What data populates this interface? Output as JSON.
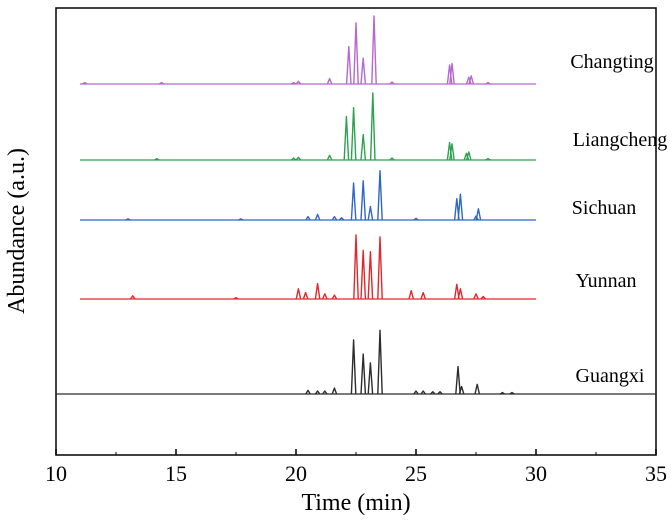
{
  "chart_data": {
    "type": "line",
    "title": "",
    "xlabel": "Time (min)",
    "ylabel": "Abundance (a.u.)",
    "xlim": [
      10,
      35
    ],
    "xticks": [
      10,
      15,
      20,
      25,
      30,
      35
    ],
    "y_ticks_shown": false,
    "legend": "labels placed inline to the right of each stacked trace",
    "series": [
      {
        "name": "Changting",
        "color": "#b468d1",
        "peaks": [
          [
            11.2,
            0.02
          ],
          [
            14.4,
            0.02
          ],
          [
            19.9,
            0.02
          ],
          [
            20.1,
            0.04
          ],
          [
            21.4,
            0.08
          ],
          [
            22.2,
            0.55
          ],
          [
            22.5,
            0.9
          ],
          [
            22.8,
            0.38
          ],
          [
            23.25,
            1.0
          ],
          [
            24.0,
            0.03
          ],
          [
            26.4,
            0.28
          ],
          [
            26.5,
            0.3
          ],
          [
            27.2,
            0.1
          ],
          [
            27.3,
            0.12
          ],
          [
            28.0,
            0.02
          ]
        ]
      },
      {
        "name": "Liangcheng",
        "color": "#2ca24f",
        "peaks": [
          [
            14.2,
            0.02
          ],
          [
            19.9,
            0.03
          ],
          [
            20.1,
            0.04
          ],
          [
            21.4,
            0.07
          ],
          [
            22.1,
            0.65
          ],
          [
            22.4,
            0.78
          ],
          [
            22.8,
            0.38
          ],
          [
            23.2,
            1.0
          ],
          [
            24.0,
            0.03
          ],
          [
            26.4,
            0.26
          ],
          [
            26.5,
            0.24
          ],
          [
            27.1,
            0.1
          ],
          [
            27.2,
            0.12
          ],
          [
            28.0,
            0.02
          ]
        ]
      },
      {
        "name": "Sichuan",
        "color": "#2e66cc",
        "peaks": [
          [
            13.0,
            0.02
          ],
          [
            17.7,
            0.02
          ],
          [
            20.5,
            0.06
          ],
          [
            20.9,
            0.1
          ],
          [
            21.6,
            0.06
          ],
          [
            21.9,
            0.04
          ],
          [
            22.4,
            0.66
          ],
          [
            22.8,
            0.7
          ],
          [
            23.1,
            0.24
          ],
          [
            23.5,
            0.88
          ],
          [
            25.0,
            0.03
          ],
          [
            26.7,
            0.38
          ],
          [
            26.85,
            0.46
          ],
          [
            27.5,
            0.07
          ],
          [
            27.6,
            0.2
          ]
        ]
      },
      {
        "name": "Yunnan",
        "color": "#e0282c",
        "peaks": [
          [
            13.2,
            0.05
          ],
          [
            17.5,
            0.02
          ],
          [
            20.1,
            0.16
          ],
          [
            20.4,
            0.1
          ],
          [
            20.9,
            0.24
          ],
          [
            21.2,
            0.08
          ],
          [
            21.6,
            0.06
          ],
          [
            22.5,
            1.0
          ],
          [
            22.8,
            0.76
          ],
          [
            23.1,
            0.74
          ],
          [
            23.5,
            0.97
          ],
          [
            24.8,
            0.13
          ],
          [
            25.3,
            0.1
          ],
          [
            26.7,
            0.23
          ],
          [
            26.85,
            0.16
          ],
          [
            27.5,
            0.08
          ],
          [
            27.8,
            0.04
          ]
        ]
      },
      {
        "name": "Guangxi",
        "color": "#2c2c2c",
        "peaks": [
          [
            20.5,
            0.05
          ],
          [
            20.9,
            0.04
          ],
          [
            21.2,
            0.04
          ],
          [
            21.6,
            0.08
          ],
          [
            22.4,
            0.73
          ],
          [
            22.8,
            0.54
          ],
          [
            23.1,
            0.42
          ],
          [
            23.5,
            0.86
          ],
          [
            25.0,
            0.04
          ],
          [
            25.3,
            0.04
          ],
          [
            25.7,
            0.03
          ],
          [
            26.0,
            0.03
          ],
          [
            26.75,
            0.37
          ],
          [
            26.9,
            0.1
          ],
          [
            27.55,
            0.13
          ],
          [
            28.6,
            0.02
          ],
          [
            29.0,
            0.02
          ]
        ]
      }
    ]
  }
}
